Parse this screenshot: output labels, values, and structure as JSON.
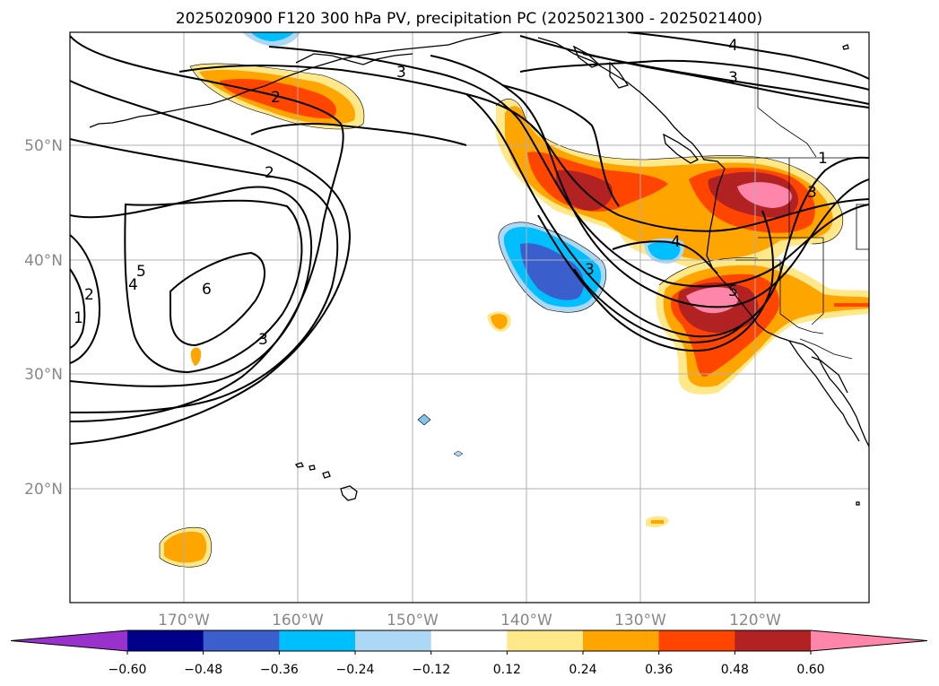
{
  "title": "2025020900 F120 300 hPa PV, precipitation PC (2025021300 - 2025021400)",
  "lat_labels": [
    "50°N",
    "40°N",
    "30°N",
    "20°N"
  ],
  "lon_labels": [
    "170°W",
    "160°W",
    "150°W",
    "140°W",
    "130°W",
    "120°W"
  ],
  "colorbar": {
    "colors": [
      "#9932cc",
      "#00008b",
      "#3a5fcd",
      "#00bfff",
      "#add8f5",
      "#ffffff",
      "#ffe88a",
      "#ffa500",
      "#ff4500",
      "#b22222",
      "#ff85aa"
    ],
    "tick_labels": [
      "−0.60",
      "−0.48",
      "−0.36",
      "−0.24",
      "−0.12",
      "0.12",
      "0.24",
      "0.36",
      "0.48",
      "0.60"
    ]
  },
  "contour_labels": [
    "2",
    "2",
    "3",
    "3",
    "3",
    "3",
    "4",
    "4",
    "4",
    "5",
    "5",
    "6",
    "1",
    "1",
    "2",
    "3"
  ]
}
